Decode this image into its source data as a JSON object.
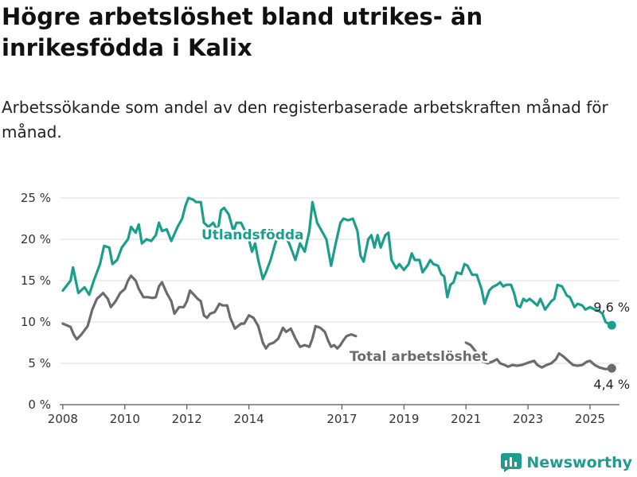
{
  "title": "Högre arbetslöshet bland utrikes- än inrikesfödda i Kalix",
  "subtitle": "Arbetssökande som andel av den registerbaserade arbetskraften månad för månad.",
  "brand": {
    "name": "Newsworthy",
    "color": "#1e9c8f"
  },
  "chart_data": {
    "type": "line",
    "x_ticks": [
      2008,
      2010,
      2012,
      2014,
      2017,
      2019,
      2021,
      2023,
      2025
    ],
    "y_ticks": [
      0,
      5,
      10,
      15,
      20,
      25
    ],
    "y_tick_suffix": " %",
    "xlim": [
      2007.9,
      2025.95
    ],
    "ylim": [
      0,
      25
    ],
    "grid": true,
    "series": [
      {
        "name": "Utlandsfödda",
        "color": "#1b9e8c",
        "end_label": "9,6 %",
        "points": [
          [
            2008.0,
            13.8
          ],
          [
            2008.25,
            15.0
          ],
          [
            2008.33,
            16.6
          ],
          [
            2008.5,
            13.5
          ],
          [
            2008.7,
            14.2
          ],
          [
            2008.85,
            13.3
          ],
          [
            2009.0,
            15.0
          ],
          [
            2009.2,
            17.0
          ],
          [
            2009.33,
            19.2
          ],
          [
            2009.5,
            19.0
          ],
          [
            2009.6,
            17.0
          ],
          [
            2009.75,
            17.5
          ],
          [
            2009.9,
            19.0
          ],
          [
            2010.1,
            20.0
          ],
          [
            2010.2,
            21.5
          ],
          [
            2010.35,
            20.8
          ],
          [
            2010.45,
            21.8
          ],
          [
            2010.55,
            19.5
          ],
          [
            2010.7,
            20.0
          ],
          [
            2010.85,
            19.8
          ],
          [
            2011.0,
            20.5
          ],
          [
            2011.1,
            22.0
          ],
          [
            2011.2,
            21.0
          ],
          [
            2011.35,
            21.2
          ],
          [
            2011.5,
            19.8
          ],
          [
            2011.7,
            21.5
          ],
          [
            2011.85,
            22.5
          ],
          [
            2011.95,
            24.0
          ],
          [
            2012.05,
            25.0
          ],
          [
            2012.2,
            24.8
          ],
          [
            2012.3,
            24.5
          ],
          [
            2012.45,
            24.5
          ],
          [
            2012.55,
            22.0
          ],
          [
            2012.7,
            21.5
          ],
          [
            2012.85,
            22.0
          ],
          [
            2013.0,
            21.0
          ],
          [
            2013.1,
            23.5
          ],
          [
            2013.2,
            23.8
          ],
          [
            2013.35,
            23.0
          ],
          [
            2013.5,
            21.0
          ],
          [
            2013.6,
            22.0
          ],
          [
            2013.75,
            22.0
          ],
          [
            2014.0,
            20.0
          ],
          [
            2014.1,
            18.5
          ],
          [
            2014.2,
            19.5
          ],
          [
            2014.3,
            17.5
          ],
          [
            2014.45,
            15.2
          ],
          [
            2014.55,
            16.0
          ],
          [
            2014.7,
            17.5
          ],
          [
            2014.85,
            19.5
          ],
          [
            2015.0,
            21.0
          ],
          [
            2015.15,
            20.5
          ],
          [
            2015.3,
            19.5
          ],
          [
            2015.5,
            17.5
          ],
          [
            2015.65,
            19.5
          ],
          [
            2015.8,
            18.5
          ],
          [
            2015.95,
            21.0
          ],
          [
            2016.05,
            24.5
          ],
          [
            2016.2,
            22.0
          ],
          [
            2016.35,
            21.0
          ],
          [
            2016.5,
            20.0
          ],
          [
            2016.65,
            16.8
          ],
          [
            2016.8,
            19.5
          ],
          [
            2016.95,
            22.0
          ],
          [
            2017.05,
            22.5
          ],
          [
            2017.2,
            22.3
          ],
          [
            2017.35,
            22.5
          ],
          [
            2017.5,
            21.0
          ],
          [
            2017.6,
            18.0
          ],
          [
            2017.7,
            17.3
          ],
          [
            2017.85,
            20.0
          ],
          [
            2017.95,
            20.5
          ],
          [
            2018.05,
            19.0
          ],
          [
            2018.15,
            20.5
          ],
          [
            2018.25,
            19.0
          ],
          [
            2018.4,
            20.5
          ],
          [
            2018.5,
            20.8
          ],
          [
            2018.6,
            17.5
          ],
          [
            2018.75,
            16.5
          ],
          [
            2018.85,
            17.0
          ],
          [
            2019.0,
            16.3
          ],
          [
            2019.15,
            17.0
          ],
          [
            2019.25,
            18.3
          ],
          [
            2019.35,
            17.5
          ],
          [
            2019.5,
            17.5
          ],
          [
            2019.6,
            16.0
          ],
          [
            2019.75,
            16.8
          ],
          [
            2019.85,
            17.5
          ],
          [
            2019.95,
            17.0
          ],
          [
            2020.1,
            16.8
          ],
          [
            2020.2,
            15.8
          ],
          [
            2020.3,
            15.5
          ],
          [
            2020.4,
            13.0
          ],
          [
            2020.5,
            14.5
          ],
          [
            2020.6,
            14.8
          ],
          [
            2020.7,
            16.0
          ],
          [
            2020.85,
            15.8
          ],
          [
            2020.95,
            17.0
          ],
          [
            2021.05,
            16.8
          ],
          [
            2021.2,
            15.7
          ],
          [
            2021.35,
            15.7
          ],
          [
            2021.5,
            14.0
          ],
          [
            2021.6,
            12.2
          ],
          [
            2021.75,
            13.8
          ],
          [
            2021.85,
            14.2
          ],
          [
            2022.0,
            14.5
          ],
          [
            2022.1,
            14.8
          ],
          [
            2022.2,
            14.3
          ],
          [
            2022.3,
            14.5
          ],
          [
            2022.45,
            14.5
          ],
          [
            2022.55,
            13.5
          ],
          [
            2022.65,
            12.0
          ],
          [
            2022.75,
            11.8
          ],
          [
            2022.85,
            12.8
          ],
          [
            2022.95,
            12.5
          ],
          [
            2023.05,
            12.8
          ],
          [
            2023.15,
            12.5
          ],
          [
            2023.3,
            12.0
          ],
          [
            2023.4,
            12.8
          ],
          [
            2023.55,
            11.5
          ],
          [
            2023.65,
            12.0
          ],
          [
            2023.75,
            12.5
          ],
          [
            2023.85,
            12.8
          ],
          [
            2023.95,
            14.5
          ],
          [
            2024.1,
            14.3
          ],
          [
            2024.25,
            13.2
          ],
          [
            2024.35,
            13.0
          ],
          [
            2024.5,
            11.8
          ],
          [
            2024.6,
            12.2
          ],
          [
            2024.75,
            12.0
          ],
          [
            2024.85,
            11.5
          ],
          [
            2025.0,
            11.8
          ],
          [
            2025.15,
            11.5
          ],
          [
            2025.3,
            11.3
          ],
          [
            2025.4,
            11.0
          ],
          [
            2025.5,
            10.0
          ],
          [
            2025.6,
            9.8
          ],
          [
            2025.7,
            9.6
          ]
        ]
      },
      {
        "name": "Total arbetslöshet",
        "color": "#6b6b6b",
        "end_label": "4,4 %",
        "points": [
          [
            2008.0,
            9.8
          ],
          [
            2008.25,
            9.4
          ],
          [
            2008.35,
            8.5
          ],
          [
            2008.45,
            7.9
          ],
          [
            2008.6,
            8.5
          ],
          [
            2008.8,
            9.5
          ],
          [
            2008.95,
            11.5
          ],
          [
            2009.1,
            12.8
          ],
          [
            2009.3,
            13.5
          ],
          [
            2009.45,
            12.8
          ],
          [
            2009.55,
            11.8
          ],
          [
            2009.7,
            12.5
          ],
          [
            2009.85,
            13.5
          ],
          [
            2010.0,
            14.0
          ],
          [
            2010.1,
            15.0
          ],
          [
            2010.2,
            15.6
          ],
          [
            2010.35,
            15.0
          ],
          [
            2010.45,
            14.0
          ],
          [
            2010.6,
            13.0
          ],
          [
            2010.75,
            13.0
          ],
          [
            2010.9,
            12.9
          ],
          [
            2011.0,
            13.0
          ],
          [
            2011.1,
            14.3
          ],
          [
            2011.2,
            14.8
          ],
          [
            2011.35,
            13.5
          ],
          [
            2011.5,
            12.5
          ],
          [
            2011.6,
            11.0
          ],
          [
            2011.75,
            11.8
          ],
          [
            2011.9,
            11.8
          ],
          [
            2012.0,
            12.5
          ],
          [
            2012.1,
            13.8
          ],
          [
            2012.25,
            13.2
          ],
          [
            2012.35,
            12.8
          ],
          [
            2012.45,
            12.5
          ],
          [
            2012.55,
            10.8
          ],
          [
            2012.65,
            10.5
          ],
          [
            2012.75,
            11.0
          ],
          [
            2012.9,
            11.2
          ],
          [
            2013.05,
            12.2
          ],
          [
            2013.15,
            12.0
          ],
          [
            2013.3,
            12.0
          ],
          [
            2013.4,
            10.5
          ],
          [
            2013.55,
            9.2
          ],
          [
            2013.65,
            9.5
          ],
          [
            2013.75,
            9.8
          ],
          [
            2013.85,
            9.8
          ],
          [
            2014.0,
            10.8
          ],
          [
            2014.15,
            10.5
          ],
          [
            2014.3,
            9.5
          ],
          [
            2014.45,
            7.5
          ],
          [
            2014.55,
            6.8
          ],
          [
            2014.65,
            7.3
          ],
          [
            2014.8,
            7.5
          ],
          [
            2014.95,
            8.0
          ],
          [
            2015.1,
            9.3
          ],
          [
            2015.2,
            8.8
          ],
          [
            2015.35,
            9.2
          ],
          [
            2015.5,
            8.0
          ],
          [
            2015.65,
            7.0
          ],
          [
            2015.8,
            7.2
          ],
          [
            2015.95,
            7.0
          ],
          [
            2016.05,
            8.0
          ],
          [
            2016.15,
            9.5
          ],
          [
            2016.3,
            9.3
          ],
          [
            2016.45,
            8.8
          ],
          [
            2016.55,
            7.8
          ],
          [
            2016.65,
            7.0
          ],
          [
            2016.75,
            7.2
          ],
          [
            2016.85,
            6.8
          ],
          [
            2016.95,
            7.2
          ],
          [
            2017.05,
            7.8
          ],
          [
            2017.15,
            8.3
          ],
          [
            2017.3,
            8.5
          ],
          [
            2017.45,
            8.3
          ]
        ],
        "tail_points": [
          [
            2021.0,
            7.5
          ],
          [
            2021.15,
            7.2
          ],
          [
            2021.3,
            6.5
          ],
          [
            2021.45,
            5.5
          ],
          [
            2021.55,
            5.2
          ],
          [
            2021.7,
            5.0
          ],
          [
            2021.85,
            5.2
          ],
          [
            2022.0,
            5.5
          ],
          [
            2022.1,
            5.0
          ],
          [
            2022.25,
            4.8
          ],
          [
            2022.35,
            4.6
          ],
          [
            2022.5,
            4.8
          ],
          [
            2022.65,
            4.7
          ],
          [
            2022.8,
            4.8
          ],
          [
            2022.95,
            5.0
          ],
          [
            2023.1,
            5.2
          ],
          [
            2023.2,
            5.3
          ],
          [
            2023.3,
            4.8
          ],
          [
            2023.45,
            4.5
          ],
          [
            2023.6,
            4.8
          ],
          [
            2023.75,
            5.0
          ],
          [
            2023.9,
            5.5
          ],
          [
            2024.0,
            6.2
          ],
          [
            2024.15,
            5.8
          ],
          [
            2024.3,
            5.3
          ],
          [
            2024.45,
            4.8
          ],
          [
            2024.6,
            4.7
          ],
          [
            2024.75,
            4.8
          ],
          [
            2024.9,
            5.2
          ],
          [
            2025.0,
            5.3
          ],
          [
            2025.15,
            4.8
          ],
          [
            2025.3,
            4.5
          ],
          [
            2025.5,
            4.3
          ],
          [
            2025.7,
            4.4
          ]
        ]
      }
    ],
    "series_labels": [
      {
        "text": "Utlandsfödda",
        "series": 0
      },
      {
        "text": "Total arbetslöshet",
        "series": 1
      }
    ]
  }
}
